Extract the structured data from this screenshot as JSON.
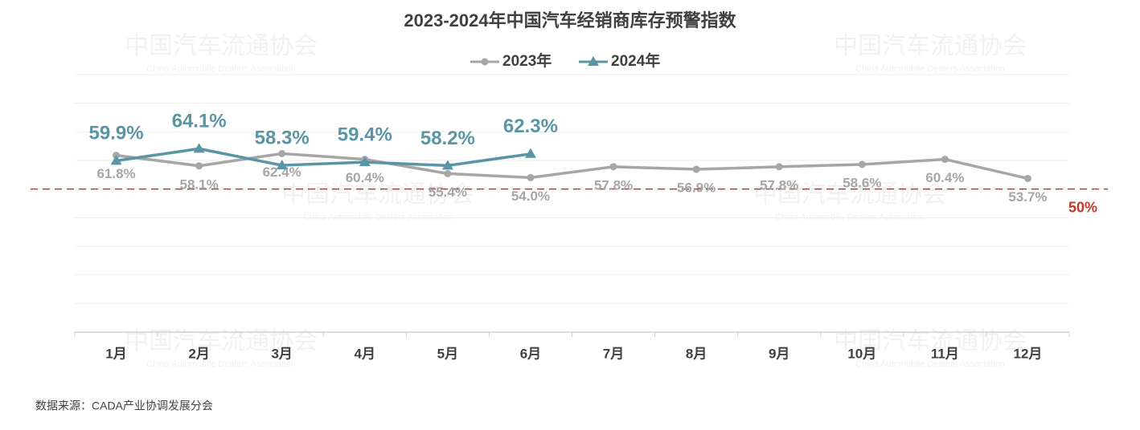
{
  "chart_data": {
    "type": "line",
    "title": "2023-2024年中国汽车经销商库存预警指数",
    "categories": [
      "1月",
      "2月",
      "3月",
      "4月",
      "5月",
      "6月",
      "7月",
      "8月",
      "9月",
      "10月",
      "11月",
      "12月"
    ],
    "series": [
      {
        "name": "2023年",
        "color": "#a6a6a6",
        "marker": "circle",
        "values": [
          61.8,
          58.1,
          62.4,
          60.4,
          55.4,
          54.0,
          57.8,
          56.9,
          57.8,
          58.6,
          60.4,
          53.7
        ],
        "value_labels": [
          "61.8%",
          "58.1%",
          "62.4%",
          "60.4%",
          "55.4%",
          "54.0%",
          "57.8%",
          "56.9%",
          "57.8%",
          "58.6%",
          "60.4%",
          "53.7%"
        ]
      },
      {
        "name": "2024年",
        "color": "#5a95a5",
        "marker": "triangle",
        "values": [
          59.9,
          64.1,
          58.3,
          59.4,
          58.2,
          62.3,
          null,
          null,
          null,
          null,
          null,
          null
        ],
        "value_labels": [
          "59.9%",
          "64.1%",
          "58.3%",
          "59.4%",
          "58.2%",
          "62.3%",
          null,
          null,
          null,
          null,
          null,
          null
        ]
      }
    ],
    "ylim": [
      0,
      90
    ],
    "yticks": [
      0,
      10,
      20,
      30,
      40,
      50,
      60,
      70,
      80,
      90
    ],
    "grid": true,
    "legend": "top",
    "reference_line": {
      "value": 50,
      "label": "50%",
      "color": "#c0392b"
    },
    "watermark": {
      "text": "中国汽车流通协会",
      "subtext": "China Automobile Dealers Association"
    },
    "source": "数据来源：CADA产业协调发展分会"
  }
}
